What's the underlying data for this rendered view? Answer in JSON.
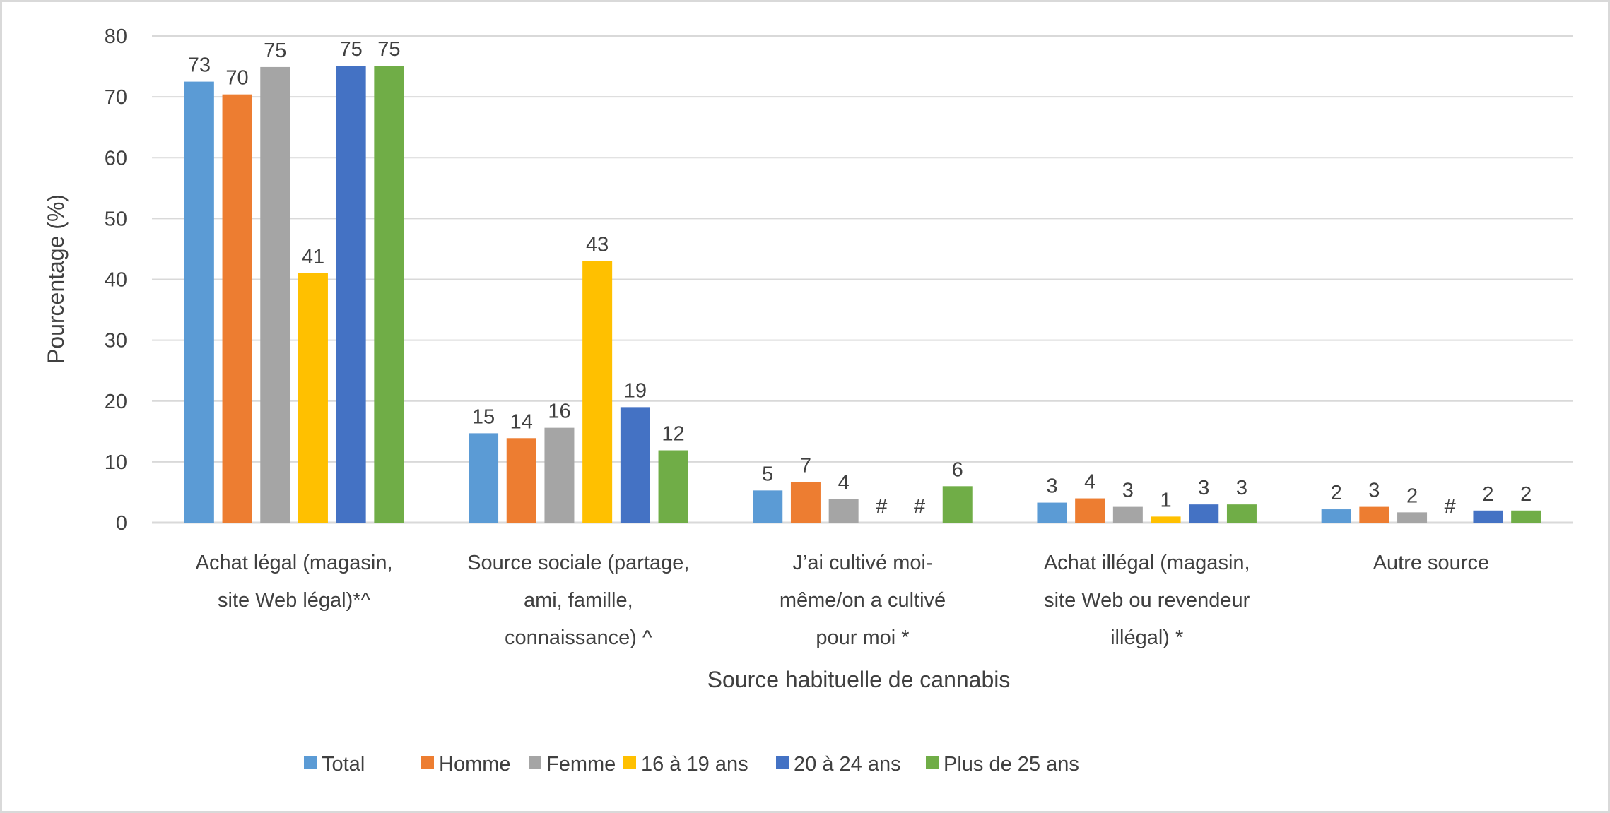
{
  "chart_data": {
    "type": "bar",
    "title": "",
    "xlabel": "Source habituelle de cannabis",
    "ylabel": "Pourcentage (%)",
    "ylim": [
      0,
      80
    ],
    "yticks": [
      0,
      10,
      20,
      30,
      40,
      50,
      60,
      70,
      80
    ],
    "grid": true,
    "legend_position": "bottom",
    "categories": [
      [
        "Achat légal (magasin,",
        "site Web légal)*^"
      ],
      [
        "Source sociale (partage,",
        "ami, famille,",
        "connaissance) ^"
      ],
      [
        "J’ai cultivé moi-",
        "même/on a cultivé",
        "pour moi *"
      ],
      [
        "Achat illégal (magasin,",
        "site Web ou revendeur",
        "illégal) *"
      ],
      [
        "Autre source"
      ]
    ],
    "series": [
      {
        "name": "Total",
        "color": "#5b9bd5",
        "values": [
          72.5,
          14.7,
          5.3,
          3.3,
          2.2
        ],
        "labels": [
          "73",
          "15",
          "5",
          "3",
          "2"
        ]
      },
      {
        "name": "Homme",
        "color": "#ed7d31",
        "values": [
          70.4,
          13.9,
          6.7,
          4.0,
          2.6
        ],
        "labels": [
          "70",
          "14",
          "7",
          "4",
          "3"
        ]
      },
      {
        "name": "Femme",
        "color": "#a5a5a5",
        "values": [
          74.9,
          15.6,
          3.9,
          2.6,
          1.7
        ],
        "labels": [
          "75",
          "16",
          "4",
          "3",
          "2"
        ]
      },
      {
        "name": "16 à 19 ans",
        "color": "#ffc000",
        "values": [
          41,
          43,
          0,
          1.0,
          0
        ],
        "labels": [
          "41",
          "43",
          "#",
          "1",
          "#"
        ]
      },
      {
        "name": "20 à 24 ans",
        "color": "#4472c4",
        "values": [
          75.1,
          19,
          0,
          3.0,
          2.0
        ],
        "labels": [
          "75",
          "19",
          "#",
          "3",
          "2"
        ]
      },
      {
        "name": "Plus de 25 ans",
        "color": "#70ad47",
        "values": [
          75.1,
          11.9,
          6.0,
          3.0,
          2.0
        ],
        "labels": [
          "75",
          "12",
          "6",
          "3",
          "2"
        ]
      }
    ]
  }
}
